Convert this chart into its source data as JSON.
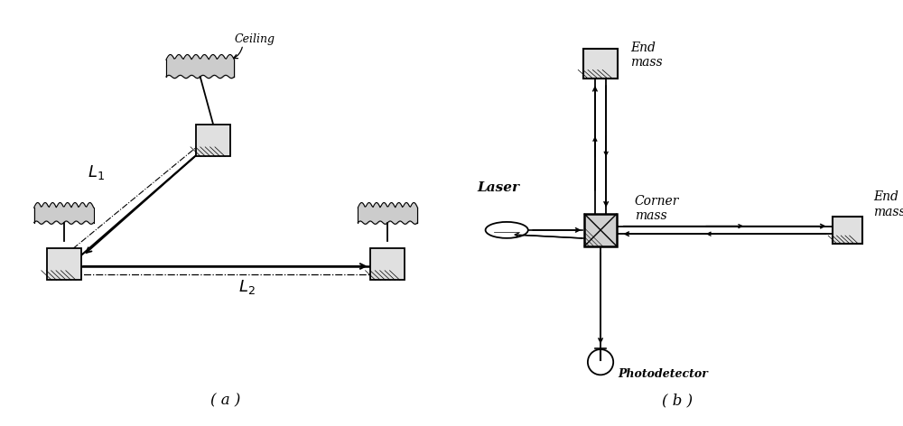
{
  "bg_color": "#ffffff",
  "fig_width": 10.0,
  "fig_height": 4.72,
  "a_label": "( a )",
  "b_label": "( b )",
  "ceiling_label": "Ceiling",
  "L1_label": "L_1",
  "L2_label": "L_2",
  "end_mass_top_label": "End\nmass",
  "end_mass_right_label": "End\nmass",
  "corner_mass_label": "Corner\nmass",
  "laser_label": "Laser",
  "photodetector_label": "Photodetector"
}
